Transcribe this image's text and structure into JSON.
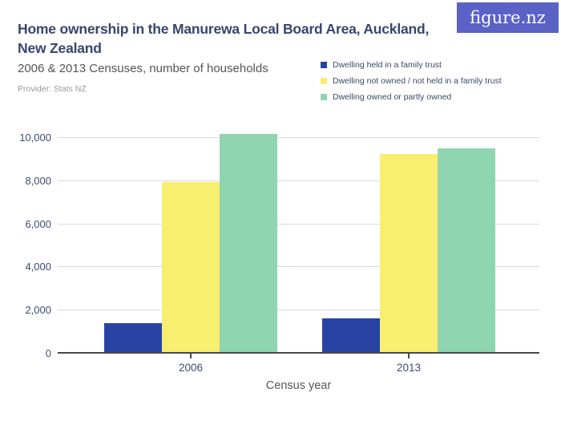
{
  "header": {
    "title_lines": [
      "Home ownership in the Manurewa Local Board Area, Auckland,",
      "New Zealand"
    ],
    "subtitle": "2006 & 2013 Censuses, number of households",
    "provider": "Provider: Stats NZ",
    "logo_text": "figure.nz"
  },
  "colors": {
    "title": "#36466d",
    "subtitle": "#54555a",
    "provider": "#98989c",
    "logo_bg": "#5a62c6",
    "tick_label": "#3e4c74",
    "legend_label": "#3c4968",
    "axis_title": "#55565b",
    "gridline": "#dadada",
    "axis_line": "#48484b",
    "series_blue": "#2843a2",
    "series_yellow": "#f8ee6f",
    "series_green": "#8fd5b0"
  },
  "chart_data": {
    "type": "bar",
    "title": "Home ownership in the Manurewa Local Board Area, Auckland, New Zealand",
    "subtitle": "2006 & 2013 Censuses, number of households",
    "xlabel": "Census year",
    "ylabel": "",
    "categories": [
      "2006",
      "2013"
    ],
    "series": [
      {
        "name": "Dwelling held in a family trust",
        "color": "#2843a2",
        "values": [
          1400,
          1650
        ]
      },
      {
        "name": "Dwelling not owned / not held in a family trust",
        "color": "#f8ee6f",
        "values": [
          7950,
          9250
        ]
      },
      {
        "name": "Dwelling owned or partly owned",
        "color": "#8fd5b0",
        "values": [
          10200,
          9500
        ]
      }
    ],
    "ylim": [
      0,
      10800
    ],
    "yticks": [
      0,
      2000,
      4000,
      6000,
      8000,
      10000
    ],
    "grid": true,
    "legend_position": "top-right"
  }
}
